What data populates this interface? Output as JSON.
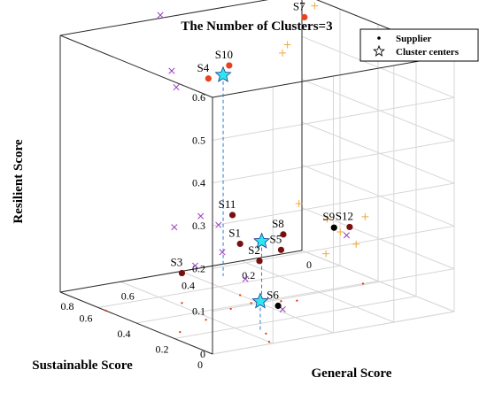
{
  "colors": {
    "cluster_center": "#2ee6f0",
    "cluster_a": "#e8421e",
    "cluster_b": "#7a0f0f",
    "cluster_c": "#000000",
    "cross": "#9a3fbf",
    "plus": "#f2a93b",
    "projection": "#2a7bd6",
    "floor_point": "#e8421e"
  },
  "chart_data": {
    "type": "scatter",
    "title": "The Number of Clusters=3",
    "xlabel": "General Score",
    "ylabel": "Sustainable Score",
    "zlabel": "Resilient Score",
    "xlim": [
      0,
      0.8
    ],
    "ylim": [
      0,
      0.6
    ],
    "zlim": [
      0,
      0.6
    ],
    "x_ticks": [
      "0",
      "0.2",
      "0.4",
      "0.6",
      "0.8"
    ],
    "y_ticks": [
      "0",
      "0.2",
      "0.4",
      "0.6"
    ],
    "z_ticks": [
      "0",
      "0.1",
      "0.2",
      "0.3",
      "0.4",
      "0.5",
      "0.6"
    ],
    "grid": true,
    "legend_position": "top-right",
    "legend": [
      {
        "label": "Supplier",
        "marker": "dot"
      },
      {
        "label": "Cluster centers",
        "marker": "star"
      }
    ],
    "suppliers": [
      {
        "label": "S1",
        "x": 0.4,
        "y": 0.31,
        "z": 0.12,
        "cluster": "b"
      },
      {
        "label": "S2",
        "x": 0.38,
        "y": 0.38,
        "z": 0.09,
        "cluster": "b"
      },
      {
        "label": "S3",
        "x": 0.58,
        "y": 0.29,
        "z": 0.07,
        "cluster": "b"
      },
      {
        "label": "S4",
        "x": 0.36,
        "y": 0.08,
        "z": 0.46,
        "cluster": "a"
      },
      {
        "label": "S5",
        "x": 0.34,
        "y": 0.43,
        "z": 0.12,
        "cluster": "b"
      },
      {
        "label": "S6",
        "x": 0.52,
        "y": 0.7,
        "z": 0.06,
        "cluster": "c"
      },
      {
        "label": "S7",
        "x": 0.08,
        "y": 0.14,
        "z": 0.58,
        "cluster": "a"
      },
      {
        "label": "S8",
        "x": 0.32,
        "y": 0.41,
        "z": 0.15,
        "cluster": "b"
      },
      {
        "label": "S9",
        "x": 0.36,
        "y": 0.74,
        "z": 0.23,
        "cluster": "c"
      },
      {
        "label": "S10",
        "x": 0.31,
        "y": 0.11,
        "z": 0.49,
        "cluster": "a"
      },
      {
        "label": "S11",
        "x": 0.4,
        "y": 0.27,
        "z": 0.18,
        "cluster": "b"
      },
      {
        "label": "S12",
        "x": 0.05,
        "y": 0.33,
        "z": 0.12,
        "cluster": "b"
      }
    ],
    "cluster_centers": [
      {
        "x": 0.33,
        "y": 0.11,
        "z": 0.47
      },
      {
        "x": 0.36,
        "y": 0.36,
        "z": 0.13
      },
      {
        "x": 0.56,
        "y": 0.67,
        "z": 0.07
      }
    ],
    "cross_points": [
      {
        "x": 0.5,
        "y": 0.05,
        "z": 0.62
      },
      {
        "x": 0.45,
        "y": 0.03,
        "z": 0.48
      },
      {
        "x": 0.46,
        "y": 0.07,
        "z": 0.45
      },
      {
        "x": 0.48,
        "y": 0.23,
        "z": 0.18
      },
      {
        "x": 0.44,
        "y": 0.26,
        "z": 0.16
      },
      {
        "x": 0.58,
        "y": 0.25,
        "z": 0.17
      },
      {
        "x": 0.58,
        "y": 0.36,
        "z": 0.1
      },
      {
        "x": 0.44,
        "y": 0.28,
        "z": 0.1
      },
      {
        "x": 0.54,
        "y": 0.56,
        "z": 0.1
      },
      {
        "x": 0.53,
        "y": 0.74,
        "z": 0.06
      },
      {
        "x": 0.35,
        "y": 0.79,
        "z": 0.22
      }
    ],
    "plus_points": [
      {
        "x": 0.04,
        "y": 0.13,
        "z": 0.6
      },
      {
        "x": 0.13,
        "y": 0.13,
        "z": 0.52
      },
      {
        "x": 0.14,
        "y": 0.12,
        "z": 0.5
      },
      {
        "x": 0.18,
        "y": 0.27,
        "z": 0.18
      },
      {
        "x": 0.13,
        "y": 0.34,
        "z": 0.15
      },
      {
        "x": 0.1,
        "y": 0.36,
        "z": 0.12
      },
      {
        "x": 0.16,
        "y": 0.38,
        "z": 0.08
      },
      {
        "x": 0.06,
        "y": 0.38,
        "z": 0.09
      },
      {
        "x": -0.02,
        "y": 0.3,
        "z": 0.13
      }
    ],
    "floor_points": [
      {
        "x": 0.58,
        "y": 0.29
      },
      {
        "x": 0.4,
        "y": 0.31
      },
      {
        "x": 0.38,
        "y": 0.38
      },
      {
        "x": 0.34,
        "y": 0.43
      },
      {
        "x": 0.3,
        "y": 0.45
      },
      {
        "x": 0.42,
        "y": 0.4
      },
      {
        "x": 0.5,
        "y": 0.42
      },
      {
        "x": 0.56,
        "y": 0.7
      },
      {
        "x": 0.6,
        "y": 0.78
      },
      {
        "x": 0.62,
        "y": 0.48
      },
      {
        "x": 0.75,
        "y": 0.55
      },
      {
        "x": 0.05,
        "y": 0.4
      },
      {
        "x": 0.8,
        "y": 0.24
      }
    ]
  }
}
